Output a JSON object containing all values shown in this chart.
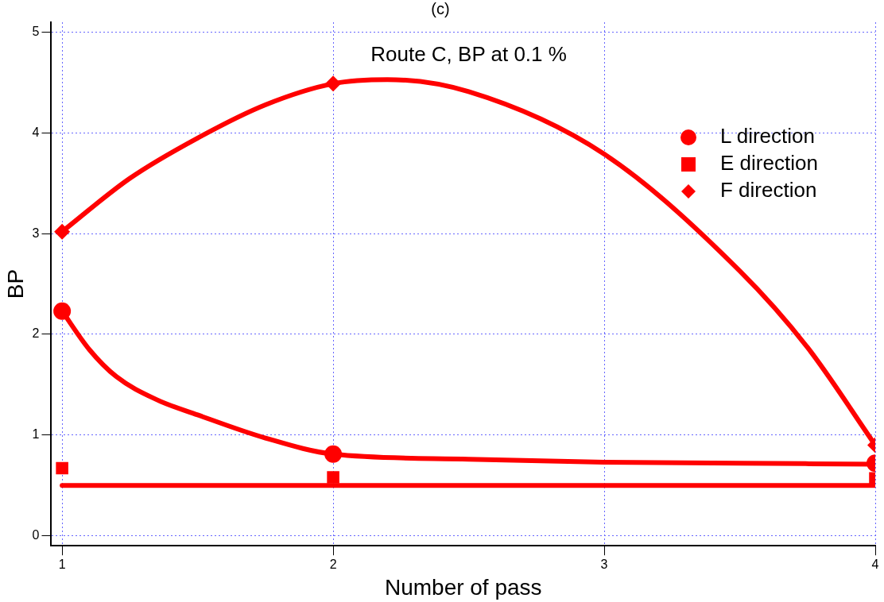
{
  "chart_data": {
    "type": "scatter",
    "title": "(c)",
    "xlabel": "Number of pass",
    "ylabel": "BP",
    "annotations": [
      "Route C, BP at 0.1 %"
    ],
    "xlim": [
      0.96,
      4.0
    ],
    "xticks": [
      1,
      2,
      3,
      4
    ],
    "ylim": [
      -0.1,
      5.1
    ],
    "yticks": [
      0,
      1,
      2,
      3,
      4,
      5
    ],
    "grid": true,
    "legend": "top right",
    "series": [
      {
        "name": "L direction",
        "marker": "circle",
        "color": "#ff0000",
        "x": [
          1,
          2,
          4
        ],
        "values": [
          2.23,
          0.81,
          0.72
        ]
      },
      {
        "name": "E direction",
        "marker": "square",
        "color": "#ff0000",
        "x": [
          1,
          2,
          4
        ],
        "values": [
          0.67,
          0.58,
          0.57
        ]
      },
      {
        "name": "F direction",
        "marker": "diamond",
        "color": "#ff0000",
        "x": [
          1,
          2,
          4
        ],
        "values": [
          3.02,
          4.49,
          0.9
        ]
      },
      {
        "type": "line",
        "marker": "none",
        "color": "#ff0000",
        "x": [
          1,
          1.1,
          1.2,
          1.35,
          1.5,
          1.75,
          2,
          2.5,
          3,
          3.5,
          4
        ],
        "values": [
          2.23,
          1.85,
          1.58,
          1.35,
          1.2,
          0.97,
          0.81,
          0.76,
          0.73,
          0.72,
          0.71
        ]
      },
      {
        "type": "line",
        "marker": "none",
        "color": "#ff0000",
        "x": [
          1,
          4
        ],
        "values": [
          0.5,
          0.5
        ]
      },
      {
        "type": "line",
        "marker": "none",
        "color": "#ff0000",
        "x": [
          1,
          1.25,
          1.5,
          1.75,
          2,
          2.2,
          2.5,
          3,
          3.5,
          3.75,
          4
        ],
        "values": [
          3.02,
          3.55,
          3.95,
          4.28,
          4.49,
          4.53,
          4.41,
          3.79,
          2.63,
          1.87,
          0.9
        ]
      }
    ]
  }
}
